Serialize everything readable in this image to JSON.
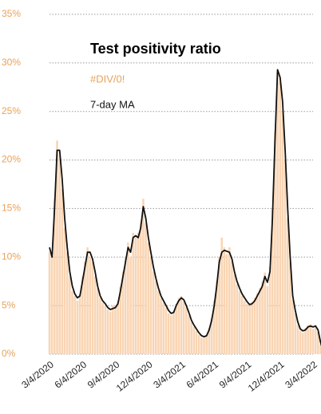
{
  "chart_data": {
    "type": "bar_line",
    "title": "Test positivity ratio",
    "categories": [
      "3/4/2020",
      null,
      null,
      null,
      null,
      null,
      null,
      null,
      null,
      null,
      null,
      null,
      null,
      "6/4/2020",
      null,
      null,
      null,
      null,
      null,
      null,
      null,
      null,
      null,
      null,
      null,
      null,
      "9/4/2020",
      null,
      null,
      null,
      null,
      null,
      null,
      null,
      null,
      null,
      null,
      null,
      null,
      "12/4/2020",
      null,
      null,
      null,
      null,
      null,
      null,
      null,
      null,
      null,
      null,
      null,
      null,
      "3/4/2021",
      null,
      null,
      null,
      null,
      null,
      null,
      null,
      null,
      null,
      null,
      null,
      null,
      "6/4/2021",
      null,
      null,
      null,
      null,
      null,
      null,
      null,
      null,
      null,
      null,
      null,
      null,
      "9/4/2021",
      null,
      null,
      null,
      null,
      null,
      null,
      null,
      null,
      null,
      null,
      null,
      null,
      "12/4/2021",
      null,
      null,
      null,
      null,
      null,
      null,
      null,
      null,
      null,
      null,
      null,
      null,
      "3/4/2022",
      null,
      null,
      null,
      null
    ],
    "series": [
      {
        "name": "#DIV/0!",
        "color": "#f9d5b4",
        "text_color": "#e8a25a",
        "kind": "bar",
        "values": [
          10.5,
          10,
          16,
          22,
          20.5,
          17,
          13,
          10.5,
          8,
          6.5,
          6,
          5.5,
          6.2,
          8,
          9.5,
          11,
          10,
          9.5,
          8,
          6.8,
          5.8,
          5.3,
          5,
          4.6,
          4.4,
          5,
          5,
          5.5,
          7,
          8.5,
          10,
          11.5,
          10,
          12.5,
          12,
          12.5,
          13.5,
          16,
          13.5,
          11.5,
          10,
          8.5,
          7.5,
          6.5,
          5.8,
          5.3,
          4.8,
          4.2,
          4,
          4.5,
          5.2,
          5.8,
          6,
          5.4,
          4.8,
          4,
          3.3,
          2.8,
          2.4,
          2,
          1.7,
          1.7,
          2,
          2.7,
          3.8,
          5.5,
          7.5,
          10,
          12,
          11,
          10.3,
          11,
          9.5,
          8.2,
          7.2,
          6.5,
          6,
          5.5,
          5.2,
          5,
          5.4,
          5.8,
          6.3,
          6.8,
          7.5,
          8.4,
          7,
          9,
          15,
          23,
          29,
          28,
          25,
          20,
          14,
          9.5,
          5.6,
          4.2,
          3,
          2.4,
          2.2,
          2.7,
          3,
          3.1,
          2.6,
          3,
          2.3,
          1,
          0.2
        ]
      },
      {
        "name": "7-day MA",
        "color": "#111111",
        "text_color": "#111111",
        "kind": "line",
        "values": [
          11,
          10,
          15,
          21,
          21,
          18,
          14,
          11,
          8.5,
          7,
          6.2,
          5.8,
          6,
          7.5,
          9,
          10.5,
          10.5,
          9.8,
          8.5,
          7,
          6,
          5.5,
          5.2,
          4.8,
          4.6,
          4.7,
          4.8,
          5.2,
          6.5,
          8,
          9.5,
          11,
          10.5,
          12,
          12.2,
          12,
          13,
          15.2,
          14,
          12,
          10.5,
          9,
          7.8,
          6.8,
          6,
          5.5,
          5,
          4.5,
          4.2,
          4.3,
          5,
          5.5,
          5.8,
          5.6,
          5,
          4.3,
          3.5,
          3,
          2.6,
          2.2,
          1.9,
          1.8,
          1.9,
          2.5,
          3.5,
          5,
          7,
          9.5,
          10.5,
          10.7,
          10.6,
          10.5,
          9.8,
          8.5,
          7.5,
          6.8,
          6.2,
          5.8,
          5.4,
          5.1,
          5.2,
          5.5,
          6,
          6.5,
          7,
          8,
          7.4,
          8.5,
          14,
          22,
          29.3,
          28.5,
          26,
          21,
          15,
          10,
          6,
          4.5,
          3.3,
          2.6,
          2.4,
          2.5,
          2.8,
          2.9,
          2.8,
          2.9,
          2.5,
          1.2,
          0.3
        ]
      }
    ],
    "ylim": [
      0,
      35
    ],
    "yticks": [
      {
        "value": 0,
        "label": "0%"
      },
      {
        "value": 5,
        "label": "5%"
      },
      {
        "value": 10,
        "label": "10%"
      },
      {
        "value": 15,
        "label": "15%"
      },
      {
        "value": 20,
        "label": "20%"
      },
      {
        "value": 25,
        "label": "25%"
      },
      {
        "value": 30,
        "label": "30%"
      },
      {
        "value": 35,
        "label": "35%"
      }
    ],
    "grid": true
  }
}
